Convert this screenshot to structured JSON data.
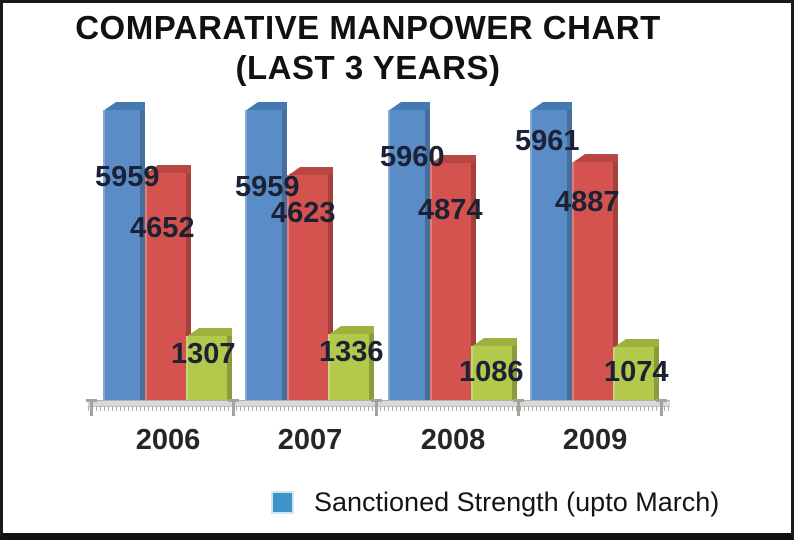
{
  "title": {
    "line1": "COMPARATIVE MANPOWER CHART",
    "line2": "(LAST 3 YEARS)"
  },
  "legend": {
    "items": [
      {
        "label": "Sanctioned Strength (upto March)",
        "color": "#3e93c8"
      }
    ]
  },
  "chart_data": {
    "type": "bar",
    "title": "COMPARATIVE MANPOWER CHART (LAST 3 YEARS)",
    "categories": [
      "2006",
      "2007",
      "2008",
      "2009"
    ],
    "series": [
      {
        "name": "Sanctioned Strength (upto March)",
        "color": "#5a8dc8",
        "cap_color": "#4479b1",
        "values": [
          5959,
          5959,
          5960,
          5961
        ]
      },
      {
        "name": "",
        "color": "#d4534f",
        "cap_color": "#b84744",
        "values": [
          4652,
          4623,
          4874,
          4887
        ]
      },
      {
        "name": "",
        "color": "#b2c94b",
        "cap_color": "#9cb13e",
        "values": [
          1307,
          1336,
          1086,
          1074
        ]
      }
    ],
    "data_labels": true,
    "grid": false,
    "axis": "x-only",
    "legend_position": "bottom",
    "ylim": [
      0,
      6200
    ]
  }
}
